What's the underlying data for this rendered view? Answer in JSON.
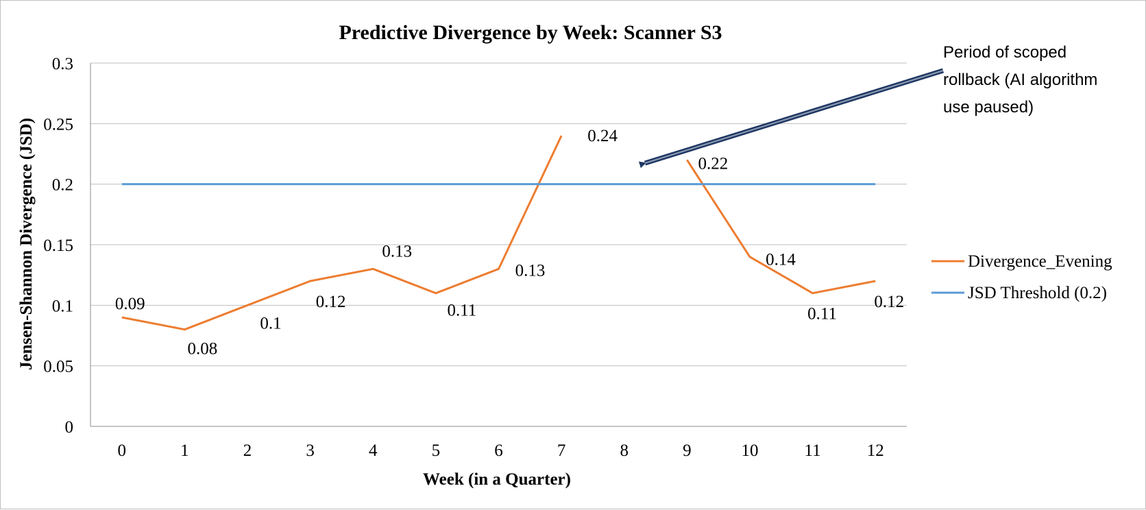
{
  "chart_data": {
    "type": "line",
    "title": "Predictive Divergence by Week: Scanner S3",
    "xlabel": "Week (in a Quarter)",
    "ylabel": "Jensen-Shannon Divergence (JSD)",
    "categories": [
      "0",
      "1",
      "2",
      "3",
      "4",
      "5",
      "6",
      "7",
      "8",
      "9",
      "10",
      "11",
      "12"
    ],
    "ylim": [
      0,
      0.3
    ],
    "yticks": [
      "0",
      "0.05",
      "0.1",
      "0.15",
      "0.2",
      "0.25",
      "0.3"
    ],
    "grid": true,
    "legend_position": "right",
    "series": [
      {
        "name": "Divergence_Evening",
        "color": "#ED7D31",
        "values": [
          0.09,
          0.08,
          0.1,
          0.12,
          0.13,
          0.11,
          0.13,
          0.24,
          null,
          0.22,
          0.14,
          0.11,
          0.12
        ],
        "data_labels": [
          "0.09",
          "0.08",
          "0.1",
          "0.12",
          "0.13",
          "0.11",
          "0.13",
          "0.24",
          "",
          "0.22",
          "0.14",
          "0.11",
          "0.12"
        ]
      },
      {
        "name": "JSD Threshold (0.2)",
        "color": "#5B9BD5",
        "values": [
          0.2,
          0.2,
          0.2,
          0.2,
          0.2,
          0.2,
          0.2,
          0.2,
          0.2,
          0.2,
          0.2,
          0.2,
          0.2
        ]
      }
    ],
    "annotation": {
      "text_lines": [
        "Period of scoped",
        "rollback (AI algorithm",
        "use paused)"
      ],
      "arrow_color": "#1F3864"
    }
  }
}
